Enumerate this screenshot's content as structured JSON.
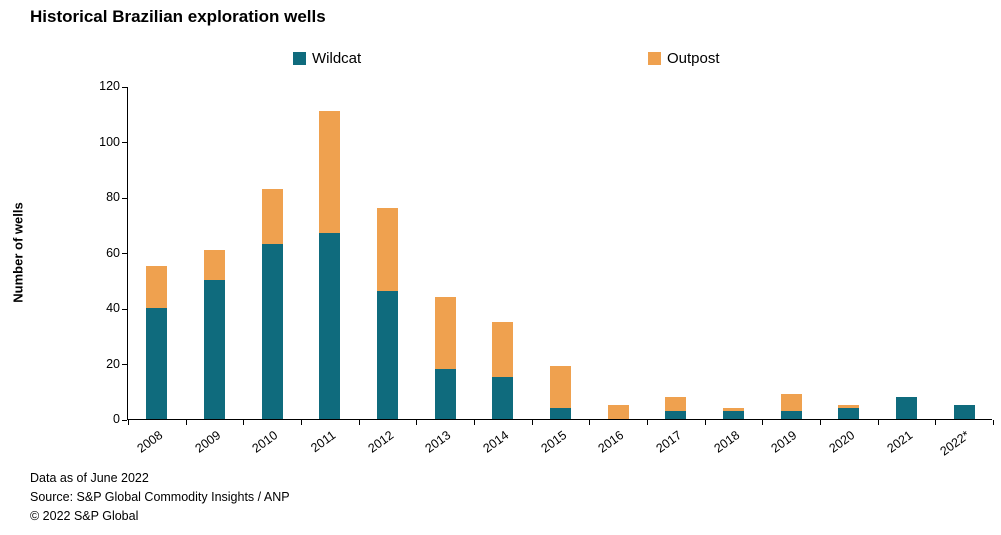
{
  "title": "Historical Brazilian exploration wells",
  "legend": {
    "wildcat_label": "Wildcat",
    "outpost_label": "Outpost"
  },
  "footer": {
    "line1": "Data as of June 2022",
    "line2": "Source: S&P Global Commodity Insights / ANP",
    "line3": "© 2022 S&P Global"
  },
  "colors": {
    "wildcat": "#0f6b7d",
    "outpost": "#efa14f",
    "axis": "#000000"
  },
  "chart_data": {
    "type": "bar",
    "stacked": true,
    "title": "Historical Brazilian exploration wells",
    "xlabel": "",
    "ylabel": "Number of wells",
    "ylim": [
      0,
      120
    ],
    "ytick_step": 20,
    "grid": false,
    "legend_position": "top",
    "categories": [
      "2008",
      "2009",
      "2010",
      "2011",
      "2012",
      "2013",
      "2014",
      "2015",
      "2016",
      "2017",
      "2018",
      "2019",
      "2020",
      "2021",
      "2022*"
    ],
    "series": [
      {
        "name": "Wildcat",
        "color": "#0f6b7d",
        "values": [
          40,
          50,
          63,
          67,
          46,
          18,
          15,
          4,
          0,
          3,
          3,
          3,
          4,
          8,
          5
        ]
      },
      {
        "name": "Outpost",
        "color": "#efa14f",
        "values": [
          15,
          11,
          20,
          44,
          30,
          26,
          20,
          15,
          5,
          5,
          1,
          6,
          1,
          0,
          0
        ]
      }
    ]
  }
}
